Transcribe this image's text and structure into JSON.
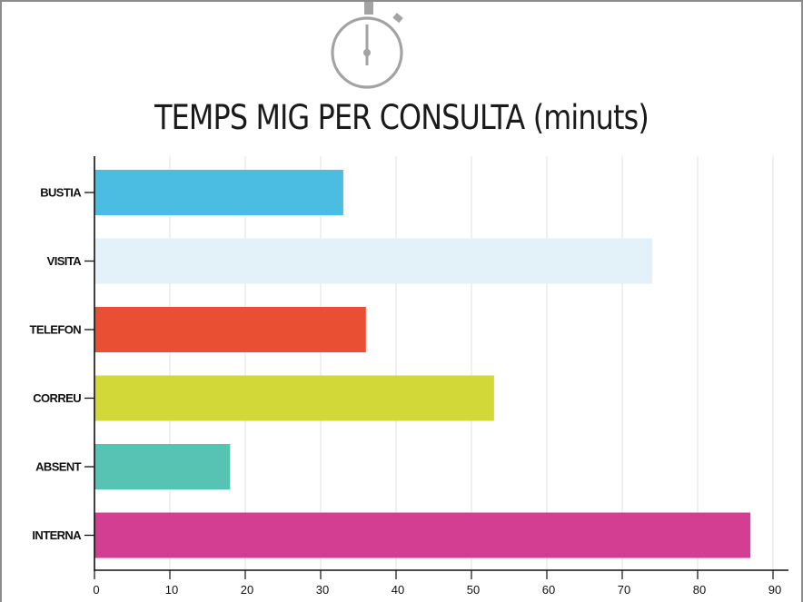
{
  "chart_data": {
    "type": "bar",
    "orientation": "horizontal",
    "title": "TEMPS MIG PER CONSULTA (minuts)",
    "categories": [
      "BUSTIA",
      "VISITA",
      "TELEFON",
      "CORREU",
      "ABSENT",
      "INTERNA"
    ],
    "values": [
      33,
      74,
      36,
      53,
      18,
      87
    ],
    "colors": [
      "#4bbde3",
      "#e3f2f8",
      "#e94f33",
      "#d1d838",
      "#57c3b3",
      "#d43e92"
    ],
    "xlim": [
      0,
      93
    ],
    "xticks": [
      0,
      10,
      20,
      30,
      40,
      50,
      60,
      70,
      80,
      90
    ],
    "grid": "vertical",
    "legend": "none"
  },
  "decor": {
    "icon": "stopwatch-icon",
    "icon_color": "#a3a3a3",
    "grid_color": "#e0e0e0",
    "axis_color": "#111111"
  }
}
